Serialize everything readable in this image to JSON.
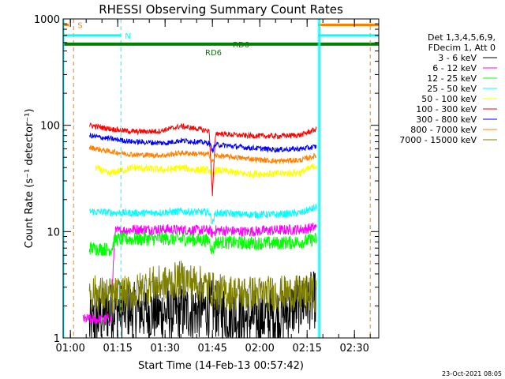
{
  "chart_data": {
    "type": "line",
    "title": "RHESSI Observing Summary Count Rates",
    "xlabel": "Start Time (14-Feb-13 00:57:42)",
    "ylabel": "Count Rate (s⁻¹ detector⁻¹)",
    "y_scale": "log",
    "ylim": [
      1,
      1000
    ],
    "xlim_minutes": [
      57.7,
      157.7
    ],
    "x_ticks": [
      {
        "minute": 60,
        "label": "01:00"
      },
      {
        "minute": 75,
        "label": "01:15"
      },
      {
        "minute": 90,
        "label": "01:30"
      },
      {
        "minute": 105,
        "label": "01:45"
      },
      {
        "minute": 120,
        "label": "02:00"
      },
      {
        "minute": 135,
        "label": "02:15"
      },
      {
        "minute": 150,
        "label": "02:30"
      }
    ],
    "y_ticks": [
      {
        "value": 1,
        "label": "1"
      },
      {
        "value": 10,
        "label": "10"
      },
      {
        "value": 100,
        "label": "100"
      },
      {
        "value": 1000,
        "label": "1000"
      }
    ],
    "legend": {
      "header": [
        "Det 1,3,4,5,6,9,",
        "FDecim 1, Att 0"
      ],
      "placement": "right"
    },
    "series": [
      {
        "name": "3 - 6 keV",
        "color": "#000000",
        "points": [
          [
            66,
            1.3
          ],
          [
            70,
            1.6
          ],
          [
            74,
            1.9
          ],
          [
            80,
            1.8
          ],
          [
            90,
            1.7
          ],
          [
            100,
            1.8
          ],
          [
            105,
            1.9
          ],
          [
            110,
            1.7
          ],
          [
            115,
            1.5
          ],
          [
            125,
            1.6
          ],
          [
            135,
            2.2
          ],
          [
            138,
            2.3
          ]
        ],
        "noise": 0.55
      },
      {
        "name": "6 - 12 keV",
        "color": "#ff00ff",
        "points": [
          [
            64,
            1.5
          ],
          [
            73,
            1.5
          ],
          [
            74,
            10
          ],
          [
            80,
            10.5
          ],
          [
            90,
            10.5
          ],
          [
            100,
            10.3
          ],
          [
            104,
            10.3
          ],
          [
            105,
            9.5
          ],
          [
            106,
            10.3
          ],
          [
            115,
            10
          ],
          [
            125,
            10.3
          ],
          [
            133,
            10.5
          ],
          [
            138,
            11
          ]
        ],
        "noise": 0.1
      },
      {
        "name": "12 - 25 keV",
        "color": "#00ff00",
        "points": [
          [
            66,
            7
          ],
          [
            73,
            6.8
          ],
          [
            74,
            8.5
          ],
          [
            80,
            8.5
          ],
          [
            90,
            8.6
          ],
          [
            100,
            8.4
          ],
          [
            104,
            8.3
          ],
          [
            105,
            6.5
          ],
          [
            106,
            8
          ],
          [
            115,
            7.8
          ],
          [
            125,
            7.8
          ],
          [
            133,
            8
          ],
          [
            138,
            8.5
          ]
        ],
        "noise": 0.13
      },
      {
        "name": "25 - 50 keV",
        "color": "#00ffff",
        "points": [
          [
            66,
            15.5
          ],
          [
            75,
            15
          ],
          [
            85,
            15
          ],
          [
            95,
            15.5
          ],
          [
            100,
            15.3
          ],
          [
            104,
            15.3
          ],
          [
            105,
            12
          ],
          [
            106,
            15
          ],
          [
            115,
            14.5
          ],
          [
            125,
            14.5
          ],
          [
            133,
            15
          ],
          [
            138,
            17
          ]
        ],
        "noise": 0.07
      },
      {
        "name": "50 - 100 keV",
        "color": "#ffff00",
        "points": [
          [
            68,
            40
          ],
          [
            72,
            35
          ],
          [
            80,
            40
          ],
          [
            90,
            38
          ],
          [
            95,
            40
          ],
          [
            100,
            38
          ],
          [
            104,
            38
          ],
          [
            105,
            33
          ],
          [
            106,
            38
          ],
          [
            115,
            35
          ],
          [
            125,
            35
          ],
          [
            133,
            36
          ],
          [
            138,
            42
          ]
        ],
        "noise": 0.07
      },
      {
        "name": "100 - 300 keV",
        "color": "#ff0000",
        "points": [
          [
            66,
            100
          ],
          [
            72,
            93
          ],
          [
            80,
            87
          ],
          [
            88,
            88
          ],
          [
            95,
            98
          ],
          [
            100,
            93
          ],
          [
            104,
            88
          ],
          [
            105,
            22
          ],
          [
            106,
            84
          ],
          [
            115,
            80
          ],
          [
            125,
            79
          ],
          [
            133,
            81
          ],
          [
            138,
            92
          ]
        ],
        "noise": 0.05
      },
      {
        "name": "300 - 800 keV",
        "color": "#0000ff",
        "points": [
          [
            66,
            80
          ],
          [
            72,
            75
          ],
          [
            80,
            70
          ],
          [
            90,
            68
          ],
          [
            95,
            72
          ],
          [
            100,
            70
          ],
          [
            104,
            68
          ],
          [
            105,
            58
          ],
          [
            106,
            66
          ],
          [
            115,
            62
          ],
          [
            125,
            59
          ],
          [
            133,
            60
          ],
          [
            138,
            63
          ]
        ],
        "noise": 0.05
      },
      {
        "name": "800 - 7000 keV",
        "color": "#ff8000",
        "points": [
          [
            66,
            62
          ],
          [
            72,
            57
          ],
          [
            80,
            53
          ],
          [
            90,
            52
          ],
          [
            95,
            55
          ],
          [
            100,
            54
          ],
          [
            104,
            53
          ],
          [
            105,
            45
          ],
          [
            106,
            52
          ],
          [
            115,
            49
          ],
          [
            125,
            46
          ],
          [
            133,
            47
          ],
          [
            138,
            52
          ]
        ],
        "noise": 0.05
      },
      {
        "name": "7000 - 15000 keV",
        "color": "#808000",
        "points": [
          [
            66,
            2.7
          ],
          [
            72,
            2.5
          ],
          [
            80,
            2.6
          ],
          [
            85,
            3.2
          ],
          [
            90,
            3.2
          ],
          [
            95,
            3.6
          ],
          [
            100,
            3.3
          ],
          [
            104,
            3
          ],
          [
            106,
            2.7
          ],
          [
            115,
            2.6
          ],
          [
            125,
            2.6
          ],
          [
            133,
            2.6
          ],
          [
            138,
            2.6
          ]
        ],
        "noise": 0.35
      }
    ],
    "annotations": [
      {
        "label": "S",
        "color": "#ff8000",
        "marker_minute": 61,
        "bar_from": 57.7,
        "bar_to": 59.5,
        "level": 880
      },
      {
        "label": "N",
        "color": "#00ffff",
        "marker_minute": 76,
        "bar_from": 57.7,
        "bar_to": 76,
        "level": 700
      },
      {
        "label": "RD6",
        "color": "#008000",
        "marker_minute": null,
        "bar_from": 57.7,
        "bar_to": 157.7,
        "level": 580
      },
      {
        "label": "RD6",
        "color": "#008000",
        "marker_minute": null,
        "bar_from": null,
        "bar_to": null,
        "level": 480
      },
      {
        "label": "",
        "color": "#ff8000",
        "marker_minute": 155,
        "bar_from": 138.5,
        "bar_to": 157.7,
        "level": 880
      },
      {
        "label": "",
        "color": "#00ffff",
        "marker_minute": 138.5,
        "bar_from": 138.5,
        "bar_to": 157.7,
        "level": 700
      }
    ],
    "grid": false,
    "footer_timestamp": "23-Oct-2021 08:05"
  }
}
